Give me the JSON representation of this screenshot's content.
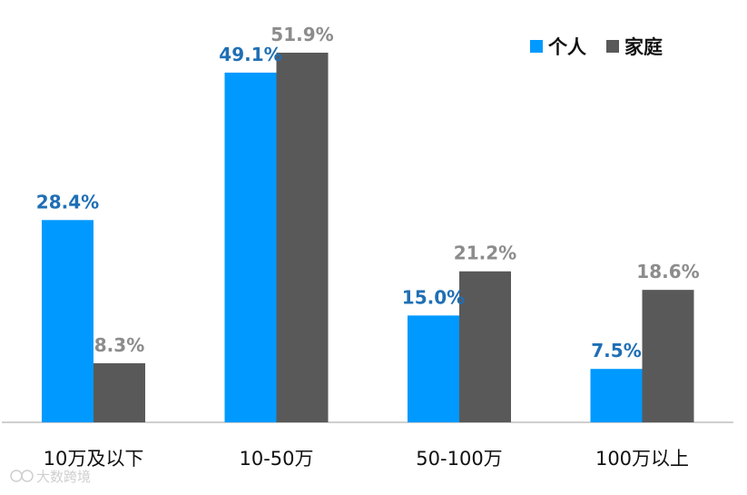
{
  "chart_data": {
    "type": "bar",
    "categories": [
      "10万及以下",
      "10-50万",
      "50-100万",
      "100万以上"
    ],
    "series": [
      {
        "name": "个人",
        "values": [
          28.4,
          49.1,
          15.0,
          7.5
        ],
        "labels": [
          "28.4%",
          "49.1%",
          "15.0%",
          "7.5%"
        ],
        "color": "#0099FF",
        "label_color": "#1F6FB5"
      },
      {
        "name": "家庭",
        "values": [
          8.3,
          51.9,
          21.2,
          18.6
        ],
        "labels": [
          "8.3%",
          "51.9%",
          "21.2%",
          "18.6%"
        ],
        "color": "#595959",
        "label_color": "#8C8C8C"
      }
    ],
    "ylim": [
      0,
      51.9
    ],
    "grid": false,
    "legend": "top-right"
  },
  "watermark": {
    "text": "大数跨境"
  }
}
